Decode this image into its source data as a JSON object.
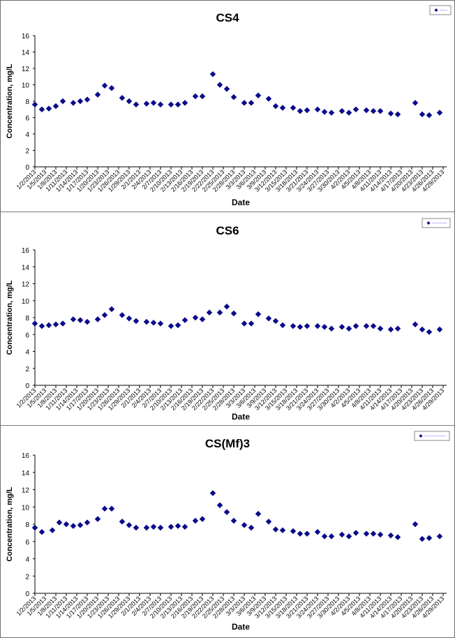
{
  "page": {
    "x_axis_label": "Date",
    "y_axis_label": "Concentration, mg/L",
    "legend_label_note": "Legend entries are too small to read",
    "marker_color": "#0a0a8c",
    "axis_color": "#000000",
    "panel_border_color": "#7c7c7c"
  },
  "chart_data": [
    {
      "type": "scatter",
      "title": "CS4",
      "xlabel": "Date",
      "ylabel": "Concentration, mg/L",
      "ylim": [
        0,
        16
      ],
      "yticks": [
        0,
        2,
        4,
        6,
        8,
        10,
        12,
        14,
        16
      ],
      "xlim": [
        "1/2/2013",
        "4/30/2013"
      ],
      "x_tick_labels": [
        "1/2/2013",
        "1/5/2013",
        "1/8/2013",
        "1/11/2013",
        "1/14/2013",
        "1/17/2013",
        "1/20/2013",
        "1/23/2013",
        "1/26/2013",
        "1/29/2013",
        "2/1/2013",
        "2/4/2013",
        "2/7/2013",
        "2/10/2013",
        "2/13/2013",
        "2/16/2013",
        "2/19/2013",
        "2/22/2013",
        "2/25/2013",
        "2/28/2013",
        "3/3/2013",
        "3/6/2013",
        "3/9/2013",
        "3/12/2013",
        "3/15/2013",
        "3/18/2013",
        "3/21/2013",
        "3/24/2013",
        "3/27/2013",
        "3/30/2013",
        "4/2/2013",
        "4/5/2013",
        "4/8/2013",
        "4/11/2013",
        "4/14/2013",
        "4/17/2013",
        "4/20/2013",
        "4/23/2013",
        "4/26/2013",
        "4/29/2013"
      ],
      "grid": false,
      "legend_position": "top-right",
      "series": [
        {
          "marker": "diamond",
          "color": "#0a0a8c",
          "points": [
            [
              "1/2/2013",
              7.6
            ],
            [
              "1/4/2013",
              7.0
            ],
            [
              "1/6/2013",
              7.1
            ],
            [
              "1/8/2013",
              7.4
            ],
            [
              "1/10/2013",
              8.0
            ],
            [
              "1/13/2013",
              7.8
            ],
            [
              "1/15/2013",
              8.0
            ],
            [
              "1/17/2013",
              8.2
            ],
            [
              "1/20/2013",
              8.8
            ],
            [
              "1/22/2013",
              9.9
            ],
            [
              "1/24/2013",
              9.6
            ],
            [
              "1/27/2013",
              8.4
            ],
            [
              "1/29/2013",
              8.0
            ],
            [
              "1/31/2013",
              7.6
            ],
            [
              "2/3/2013",
              7.7
            ],
            [
              "2/5/2013",
              7.8
            ],
            [
              "2/7/2013",
              7.6
            ],
            [
              "2/10/2013",
              7.6
            ],
            [
              "2/12/2013",
              7.6
            ],
            [
              "2/14/2013",
              7.8
            ],
            [
              "2/17/2013",
              8.6
            ],
            [
              "2/19/2013",
              8.6
            ],
            [
              "2/22/2013",
              11.3
            ],
            [
              "2/24/2013",
              10.0
            ],
            [
              "2/26/2013",
              9.5
            ],
            [
              "2/28/2013",
              8.5
            ],
            [
              "3/3/2013",
              7.8
            ],
            [
              "3/5/2013",
              7.8
            ],
            [
              "3/7/2013",
              8.7
            ],
            [
              "3/10/2013",
              8.3
            ],
            [
              "3/12/2013",
              7.4
            ],
            [
              "3/14/2013",
              7.2
            ],
            [
              "3/17/2013",
              7.2
            ],
            [
              "3/19/2013",
              6.8
            ],
            [
              "3/21/2013",
              6.9
            ],
            [
              "3/24/2013",
              7.0
            ],
            [
              "3/26/2013",
              6.7
            ],
            [
              "3/28/2013",
              6.6
            ],
            [
              "3/31/2013",
              6.8
            ],
            [
              "4/2/2013",
              6.6
            ],
            [
              "4/4/2013",
              7.0
            ],
            [
              "4/7/2013",
              6.9
            ],
            [
              "4/9/2013",
              6.8
            ],
            [
              "4/11/2013",
              6.8
            ],
            [
              "4/14/2013",
              6.5
            ],
            [
              "4/16/2013",
              6.4
            ],
            [
              "4/21/2013",
              7.8
            ],
            [
              "4/23/2013",
              6.4
            ],
            [
              "4/25/2013",
              6.3
            ],
            [
              "4/28/2013",
              6.6
            ]
          ]
        }
      ]
    },
    {
      "type": "scatter",
      "title": "CS6",
      "xlabel": "Date",
      "ylabel": "Concentration, mg/L",
      "ylim": [
        0,
        16
      ],
      "yticks": [
        0,
        2,
        4,
        6,
        8,
        10,
        12,
        14,
        16
      ],
      "xlim": [
        "1/2/2013",
        "4/30/2013"
      ],
      "x_tick_labels": [
        "1/2/2013",
        "1/5/2013",
        "1/8/2013",
        "1/11/2013",
        "1/14/2013",
        "1/17/2013",
        "1/20/2013",
        "1/23/2013",
        "1/26/2013",
        "1/29/2013",
        "2/1/2013",
        "2/4/2013",
        "2/7/2013",
        "2/10/2013",
        "2/13/2013",
        "2/16/2013",
        "2/19/2013",
        "2/22/2013",
        "2/25/2013",
        "2/28/2013",
        "3/3/2013",
        "3/6/2013",
        "3/9/2013",
        "3/12/2013",
        "3/15/2013",
        "3/18/2013",
        "3/21/2013",
        "3/24/2013",
        "3/27/2013",
        "3/30/2013",
        "4/2/2013",
        "4/5/2013",
        "4/8/2013",
        "4/11/2013",
        "4/14/2013",
        "4/17/2013",
        "4/20/2013",
        "4/23/2013",
        "4/26/2013",
        "4/29/2013"
      ],
      "grid": false,
      "legend_position": "top-right",
      "series": [
        {
          "marker": "diamond",
          "color": "#0a0a8c",
          "points": [
            [
              "1/2/2013",
              7.3
            ],
            [
              "1/4/2013",
              7.0
            ],
            [
              "1/6/2013",
              7.1
            ],
            [
              "1/8/2013",
              7.2
            ],
            [
              "1/10/2013",
              7.3
            ],
            [
              "1/13/2013",
              7.8
            ],
            [
              "1/15/2013",
              7.7
            ],
            [
              "1/17/2013",
              7.5
            ],
            [
              "1/20/2013",
              7.8
            ],
            [
              "1/22/2013",
              8.3
            ],
            [
              "1/24/2013",
              9.0
            ],
            [
              "1/27/2013",
              8.3
            ],
            [
              "1/29/2013",
              7.9
            ],
            [
              "1/31/2013",
              7.6
            ],
            [
              "2/3/2013",
              7.5
            ],
            [
              "2/5/2013",
              7.4
            ],
            [
              "2/7/2013",
              7.3
            ],
            [
              "2/10/2013",
              7.0
            ],
            [
              "2/12/2013",
              7.1
            ],
            [
              "2/14/2013",
              7.7
            ],
            [
              "2/17/2013",
              8.0
            ],
            [
              "2/19/2013",
              7.8
            ],
            [
              "2/21/2013",
              8.6
            ],
            [
              "2/24/2013",
              8.6
            ],
            [
              "2/26/2013",
              9.3
            ],
            [
              "2/28/2013",
              8.5
            ],
            [
              "3/3/2013",
              7.3
            ],
            [
              "3/5/2013",
              7.3
            ],
            [
              "3/7/2013",
              8.4
            ],
            [
              "3/10/2013",
              7.9
            ],
            [
              "3/12/2013",
              7.6
            ],
            [
              "3/14/2013",
              7.1
            ],
            [
              "3/17/2013",
              7.0
            ],
            [
              "3/19/2013",
              6.9
            ],
            [
              "3/21/2013",
              7.0
            ],
            [
              "3/24/2013",
              7.0
            ],
            [
              "3/26/2013",
              6.9
            ],
            [
              "3/28/2013",
              6.7
            ],
            [
              "3/31/2013",
              6.9
            ],
            [
              "4/2/2013",
              6.7
            ],
            [
              "4/4/2013",
              7.0
            ],
            [
              "4/7/2013",
              7.0
            ],
            [
              "4/9/2013",
              7.0
            ],
            [
              "4/11/2013",
              6.7
            ],
            [
              "4/14/2013",
              6.6
            ],
            [
              "4/16/2013",
              6.7
            ],
            [
              "4/21/2013",
              7.2
            ],
            [
              "4/23/2013",
              6.6
            ],
            [
              "4/25/2013",
              6.3
            ],
            [
              "4/28/2013",
              6.6
            ]
          ]
        }
      ]
    },
    {
      "type": "scatter",
      "title": "CS(Mf)3",
      "xlabel": "Date",
      "ylabel": "Concentration, mg/L",
      "ylim": [
        0,
        16
      ],
      "yticks": [
        0,
        2,
        4,
        6,
        8,
        10,
        12,
        14,
        16
      ],
      "xlim": [
        "1/2/2013",
        "4/30/2013"
      ],
      "x_tick_labels": [
        "1/2/2013",
        "1/5/2013",
        "1/8/2013",
        "1/11/2013",
        "1/14/2013",
        "1/17/2013",
        "1/20/2013",
        "1/23/2013",
        "1/26/2013",
        "1/29/2013",
        "2/1/2013",
        "2/4/2013",
        "2/7/2013",
        "2/10/2013",
        "2/13/2013",
        "2/16/2013",
        "2/19/2013",
        "2/22/2013",
        "2/25/2013",
        "2/28/2013",
        "3/3/2013",
        "3/6/2013",
        "3/9/2013",
        "3/12/2013",
        "3/15/2013",
        "3/18/2013",
        "3/21/2013",
        "3/24/2013",
        "3/27/2013",
        "3/30/2013",
        "4/2/2013",
        "4/5/2013",
        "4/8/2013",
        "4/11/2013",
        "4/14/2013",
        "4/17/2013",
        "4/20/2013",
        "4/23/2013",
        "4/26/2013",
        "4/29/2013"
      ],
      "grid": false,
      "legend_position": "top-right",
      "series": [
        {
          "marker": "diamond",
          "color": "#0a0a8c",
          "points": [
            [
              "1/2/2013",
              7.6
            ],
            [
              "1/4/2013",
              7.1
            ],
            [
              "1/7/2013",
              7.3
            ],
            [
              "1/9/2013",
              8.2
            ],
            [
              "1/11/2013",
              8.0
            ],
            [
              "1/13/2013",
              7.8
            ],
            [
              "1/15/2013",
              7.9
            ],
            [
              "1/17/2013",
              8.2
            ],
            [
              "1/20/2013",
              8.6
            ],
            [
              "1/22/2013",
              9.8
            ],
            [
              "1/24/2013",
              9.8
            ],
            [
              "1/27/2013",
              8.3
            ],
            [
              "1/29/2013",
              7.9
            ],
            [
              "1/31/2013",
              7.6
            ],
            [
              "2/3/2013",
              7.6
            ],
            [
              "2/5/2013",
              7.7
            ],
            [
              "2/7/2013",
              7.6
            ],
            [
              "2/10/2013",
              7.7
            ],
            [
              "2/12/2013",
              7.8
            ],
            [
              "2/14/2013",
              7.7
            ],
            [
              "2/17/2013",
              8.4
            ],
            [
              "2/19/2013",
              8.6
            ],
            [
              "2/22/2013",
              11.6
            ],
            [
              "2/24/2013",
              10.2
            ],
            [
              "2/26/2013",
              9.4
            ],
            [
              "2/28/2013",
              8.4
            ],
            [
              "3/3/2013",
              7.9
            ],
            [
              "3/5/2013",
              7.6
            ],
            [
              "3/7/2013",
              9.2
            ],
            [
              "3/10/2013",
              8.3
            ],
            [
              "3/12/2013",
              7.4
            ],
            [
              "3/14/2013",
              7.3
            ],
            [
              "3/17/2013",
              7.2
            ],
            [
              "3/19/2013",
              6.9
            ],
            [
              "3/21/2013",
              6.9
            ],
            [
              "3/24/2013",
              7.1
            ],
            [
              "3/26/2013",
              6.6
            ],
            [
              "3/28/2013",
              6.6
            ],
            [
              "3/31/2013",
              6.8
            ],
            [
              "4/2/2013",
              6.6
            ],
            [
              "4/4/2013",
              7.0
            ],
            [
              "4/7/2013",
              6.9
            ],
            [
              "4/9/2013",
              6.9
            ],
            [
              "4/11/2013",
              6.8
            ],
            [
              "4/14/2013",
              6.7
            ],
            [
              "4/16/2013",
              6.5
            ],
            [
              "4/21/2013",
              8.0
            ],
            [
              "4/23/2013",
              6.3
            ],
            [
              "4/25/2013",
              6.4
            ],
            [
              "4/28/2013",
              6.6
            ]
          ]
        }
      ]
    }
  ]
}
